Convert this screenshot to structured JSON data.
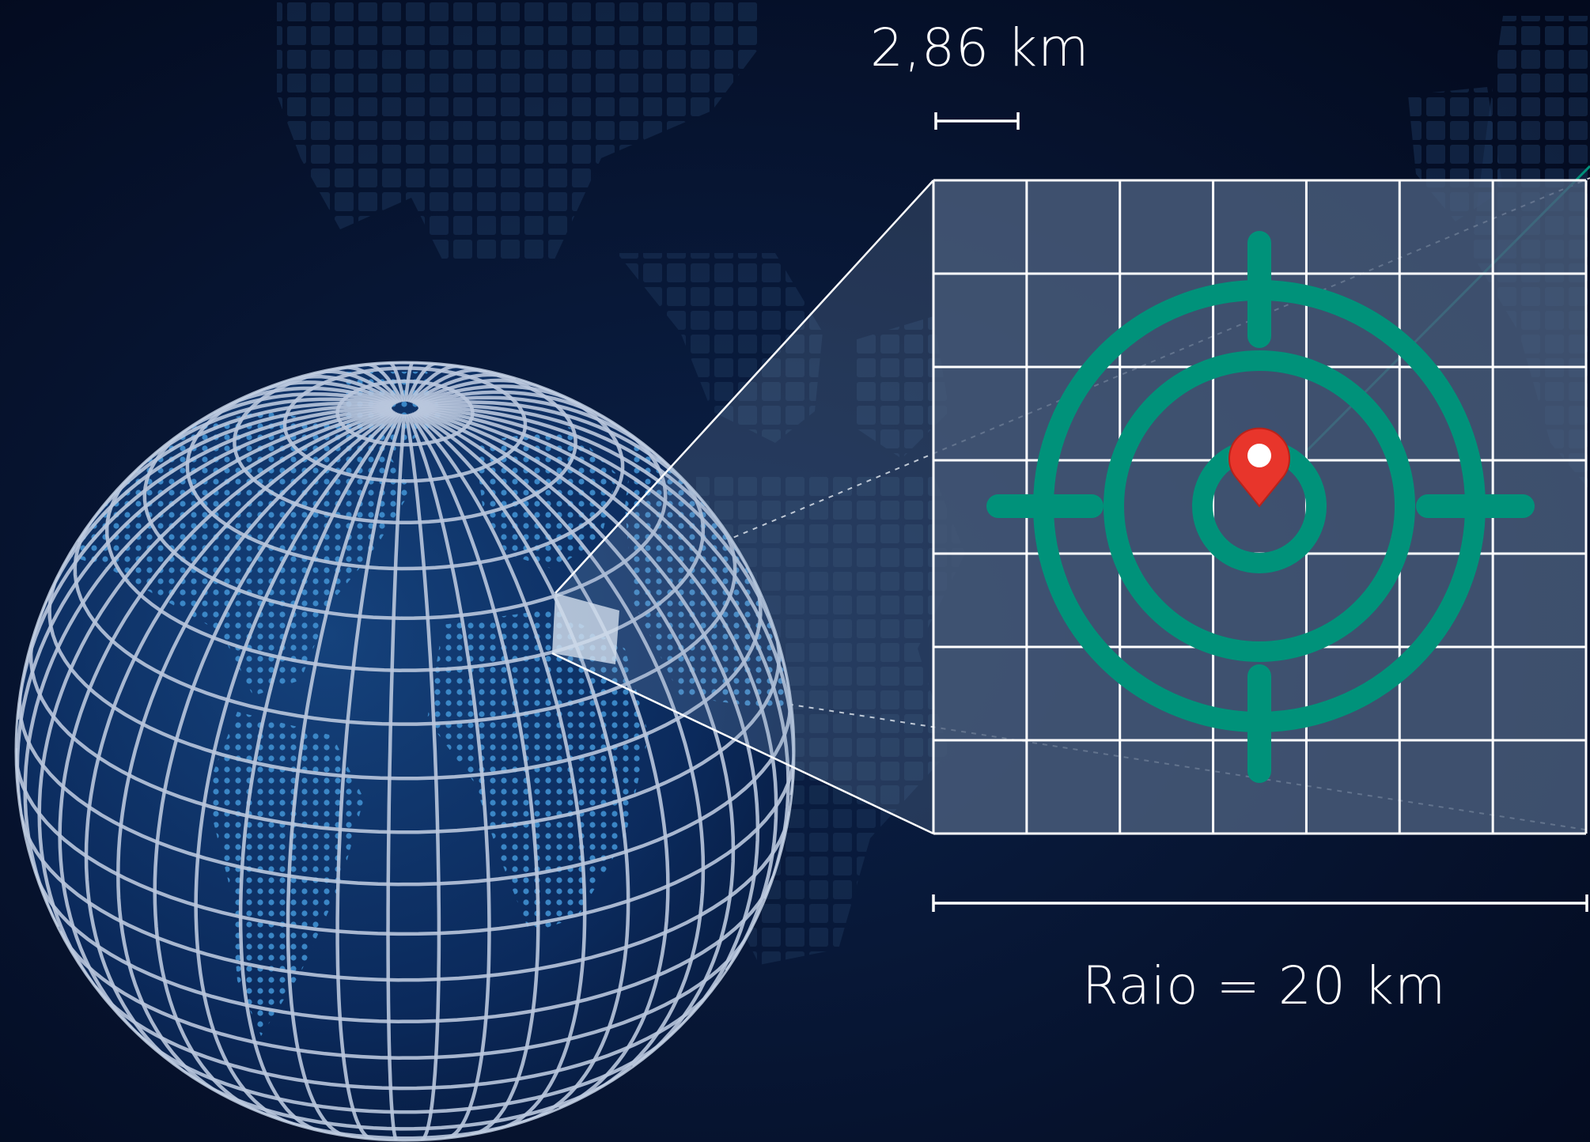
{
  "labels": {
    "cell_size": "2,86 km",
    "radius": "Raio = 20 km"
  },
  "icons": {
    "target": "crosshair-target-icon",
    "pin": "location-pin-icon",
    "globe": "wireframe-globe-icon"
  },
  "colors": {
    "background": "#040d24",
    "target": "#00927a",
    "pin": "#e8352b",
    "grid_lines": "#ffffff",
    "globe_dots": "#3f8fd0"
  },
  "grid": {
    "columns": 7,
    "rows": 7
  }
}
